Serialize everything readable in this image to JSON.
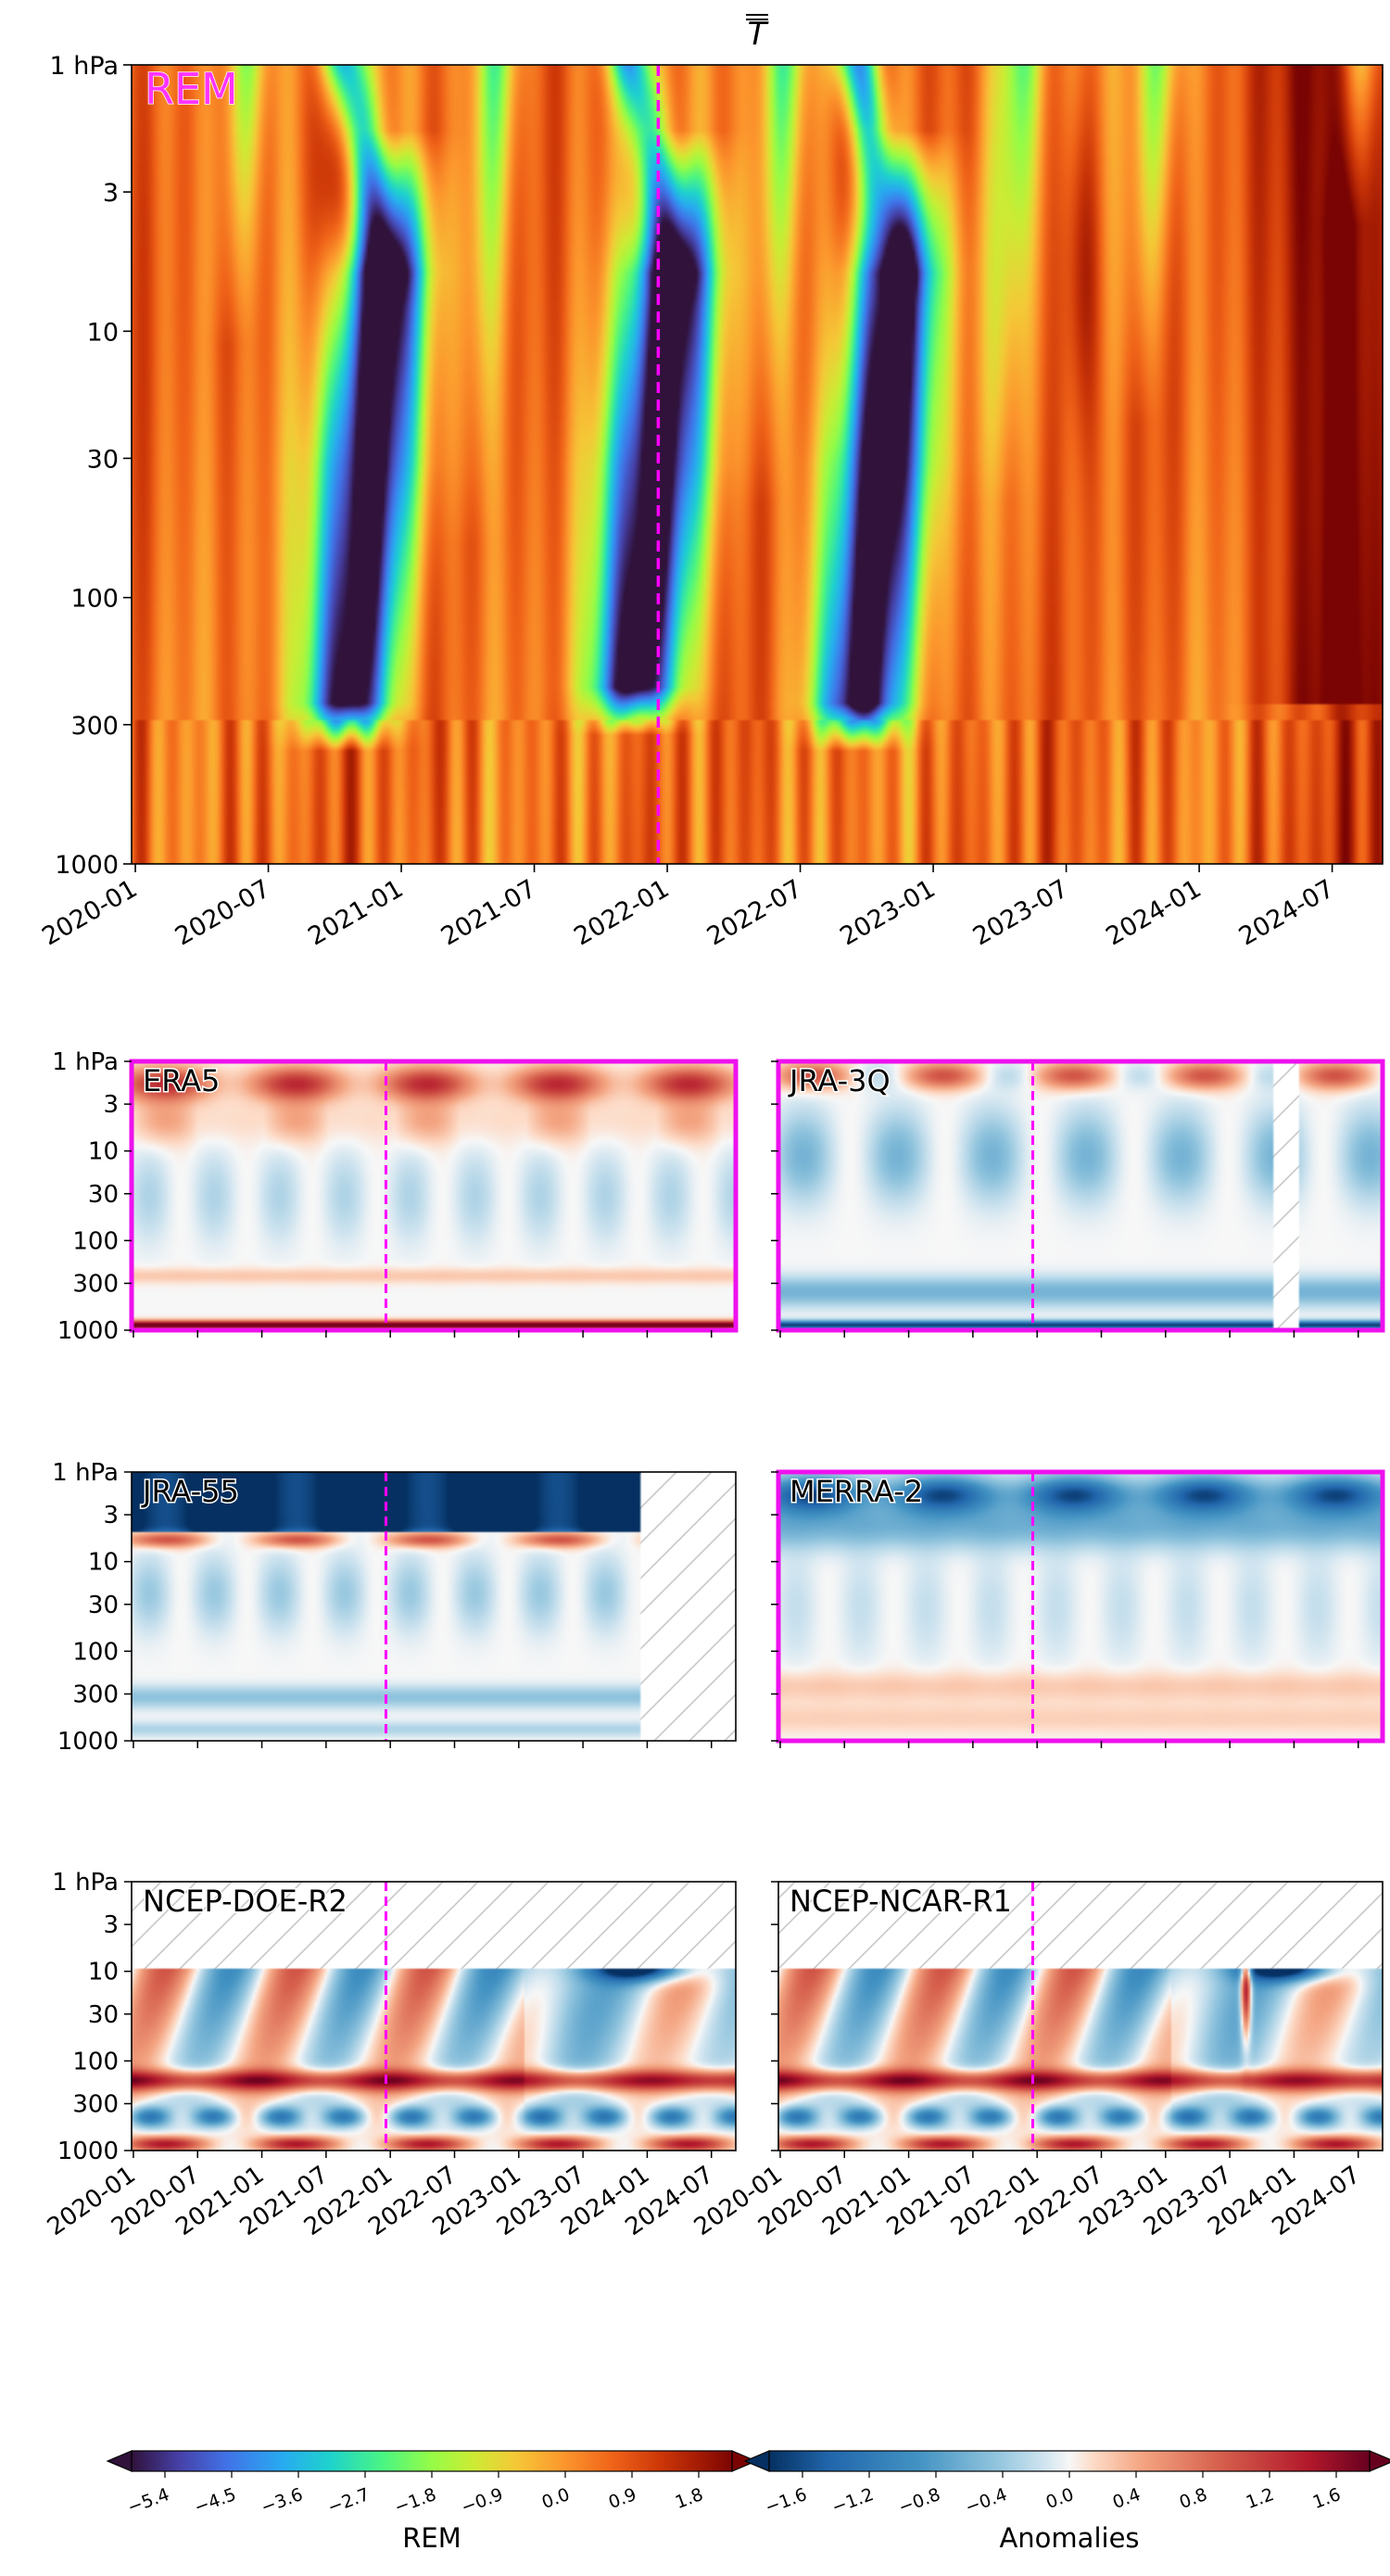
{
  "chart_data": [
    {
      "type": "heatmap",
      "title": "T",
      "title_style": "italic with double overbar",
      "panel_label": "REM",
      "panel_label_color": "#ff33ff",
      "xlabel": "",
      "ylabel": "",
      "x_tick_labels": [
        "2020-01",
        "2020-07",
        "2021-01",
        "2021-07",
        "2022-01",
        "2022-07",
        "2023-01",
        "2023-07",
        "2024-01",
        "2024-07"
      ],
      "y_tick_labels": [
        "1 hPa",
        "3",
        "10",
        "30",
        "100",
        "300",
        "1000"
      ],
      "y_scale": "log (pressure, inverted)",
      "ylim": [
        1000,
        1
      ],
      "dashed_line_at": "2021-12",
      "dashed_line_color": "#ff00ff",
      "colormap": "turbo",
      "value_range": [
        -5.4,
        2.1
      ]
    },
    {
      "type": "heatmap",
      "panels": [
        "ERA5",
        "JRA-3Q",
        "JRA-55",
        "MERRA-2",
        "NCEP-DOE-R2",
        "NCEP-NCAR-R1"
      ],
      "highlighted_panels": [
        "ERA5",
        "JRA-3Q",
        "MERRA-2"
      ],
      "highlight_color": "#ee11ee",
      "x_tick_labels": [
        "2020-01",
        "2020-07",
        "2021-01",
        "2021-07",
        "2022-01",
        "2022-07",
        "2023-01",
        "2023-07",
        "2024-01",
        "2024-07"
      ],
      "y_tick_labels": [
        "1 hPa",
        "3",
        "10",
        "30",
        "100",
        "300",
        "1000"
      ],
      "y_scale": "log (pressure, inverted)",
      "ylim": [
        1000,
        1
      ],
      "dashed_line_at": "2021-12",
      "missing_data": "hatched",
      "colormap": "RdBu_r",
      "value_range": [
        -1.8,
        1.8
      ]
    }
  ],
  "colorbars": [
    {
      "label": "REM",
      "colormap": "turbo",
      "ticks": [
        "−5.4",
        "−4.5",
        "−3.6",
        "−2.7",
        "−1.8",
        "−0.9",
        "0.0",
        "0.9",
        "1.8"
      ],
      "tick_values": [
        -5.4,
        -4.5,
        -3.6,
        -2.7,
        -1.8,
        -0.9,
        0.0,
        0.9,
        1.8
      ],
      "range": [
        -5.85,
        2.25
      ]
    },
    {
      "label": "Anomalies",
      "colormap": "RdBu_r",
      "ticks": [
        "−1.6",
        "−1.2",
        "−0.8",
        "−0.4",
        "0.0",
        "0.4",
        "0.8",
        "1.2",
        "1.6"
      ],
      "tick_values": [
        -1.6,
        -1.2,
        -0.8,
        -0.4,
        0.0,
        0.4,
        0.8,
        1.2,
        1.6
      ],
      "range": [
        -1.8,
        1.8
      ]
    }
  ],
  "colors": {
    "dashed_line": "#ff00ff",
    "highlight_frame": "#ee11ee",
    "rem_label": "#ff33ff",
    "hatch": "#c8c8c8"
  }
}
